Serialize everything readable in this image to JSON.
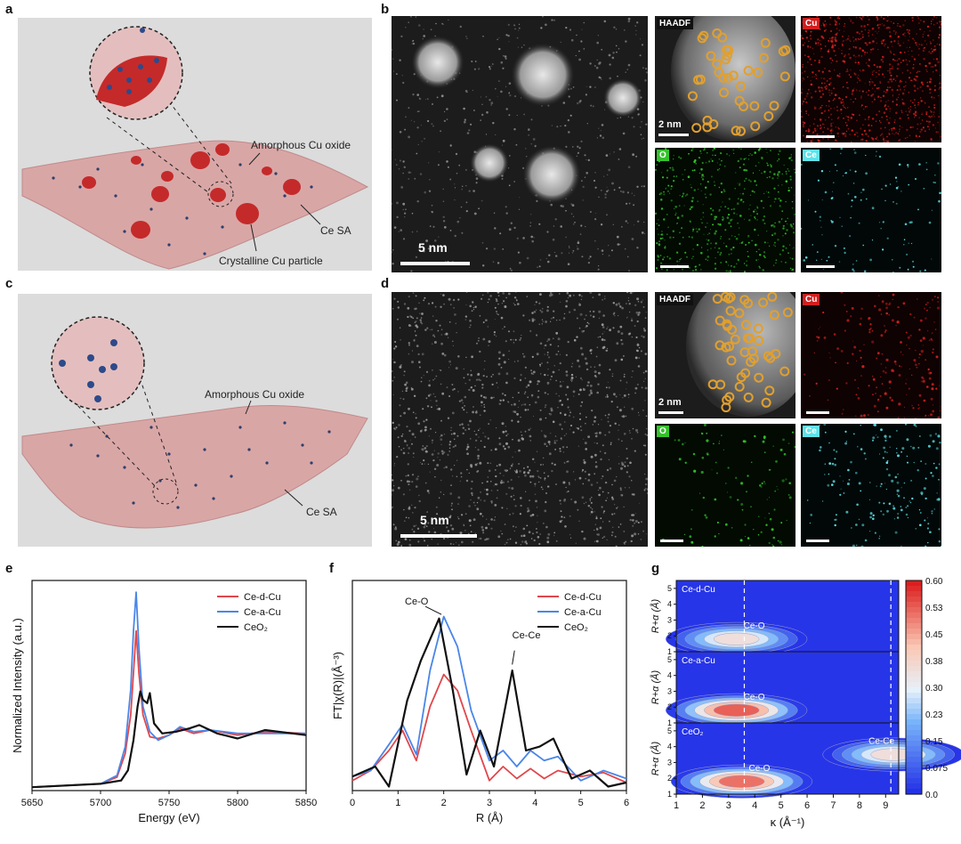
{
  "panels": {
    "a": {
      "label": "a",
      "annotations": [
        "Amorphous Cu oxide",
        "Ce SA",
        "Crystalline Cu particle"
      ]
    },
    "b": {
      "label": "b",
      "scale_main": "5 nm",
      "scale_haadf": "2 nm",
      "tags": [
        "HAADF",
        "Cu",
        "O",
        "Ce"
      ]
    },
    "c": {
      "label": "c",
      "annotations": [
        "Amorphous Cu oxide",
        "Ce SA"
      ]
    },
    "d": {
      "label": "d",
      "scale_main": "5 nm",
      "scale_haadf": "2 nm",
      "tags": [
        "HAADF",
        "Cu",
        "O",
        "Ce"
      ]
    },
    "e": {
      "label": "e"
    },
    "f": {
      "label": "f"
    },
    "g": {
      "label": "g"
    }
  },
  "colors": {
    "ce_d_cu": "#e0474c",
    "ce_a_cu": "#4a86e8",
    "ceo2": "#111111",
    "cu_map": "#d21f1f",
    "o_map": "#35c22c",
    "ce_map": "#5fe3e8",
    "haadf_ring": "#e0a030"
  },
  "chart_data": [
    {
      "type": "line",
      "title": "",
      "xlabel": "Energy (eV)",
      "ylabel": "Normalized Intensity (a.u.)",
      "xlim": [
        5650,
        5850
      ],
      "xticks": [
        5650,
        5700,
        5750,
        5800,
        5850
      ],
      "legend_position": "top-right",
      "series": [
        {
          "name": "Ce-d-Cu",
          "x": [
            5650,
            5700,
            5712,
            5718,
            5722,
            5724,
            5726,
            5728,
            5731,
            5736,
            5742,
            5750,
            5758,
            5768,
            5780,
            5800,
            5820,
            5850
          ],
          "y": [
            0.02,
            0.04,
            0.08,
            0.22,
            0.45,
            0.7,
            0.95,
            0.7,
            0.45,
            0.32,
            0.31,
            0.33,
            0.37,
            0.34,
            0.36,
            0.33,
            0.35,
            0.34
          ]
        },
        {
          "name": "Ce-a-Cu",
          "x": [
            5650,
            5700,
            5712,
            5718,
            5722,
            5724,
            5726,
            5728,
            5731,
            5736,
            5742,
            5750,
            5758,
            5768,
            5780,
            5800,
            5820,
            5850
          ],
          "y": [
            0.02,
            0.04,
            0.09,
            0.26,
            0.6,
            0.95,
            1.18,
            0.85,
            0.5,
            0.35,
            0.3,
            0.33,
            0.38,
            0.35,
            0.36,
            0.34,
            0.34,
            0.34
          ]
        },
        {
          "name": "CeO2",
          "display": "CeO₂",
          "x": [
            5650,
            5700,
            5715,
            5720,
            5724,
            5727,
            5729,
            5731,
            5734,
            5736,
            5739,
            5745,
            5755,
            5765,
            5772,
            5785,
            5800,
            5820,
            5850
          ],
          "y": [
            0.02,
            0.04,
            0.06,
            0.12,
            0.3,
            0.5,
            0.59,
            0.54,
            0.52,
            0.58,
            0.4,
            0.34,
            0.35,
            0.37,
            0.39,
            0.34,
            0.31,
            0.36,
            0.33
          ]
        }
      ]
    },
    {
      "type": "line",
      "title": "",
      "xlabel": "R (Å)",
      "ylabel": "FT|χ(R)|(Å⁻³)",
      "xlim": [
        0,
        6
      ],
      "xticks": [
        0,
        1,
        2,
        3,
        4,
        5,
        6
      ],
      "annotations": [
        "Ce-O",
        "Ce-Ce"
      ],
      "legend_position": "top-right",
      "series": [
        {
          "name": "Ce-d-Cu",
          "x": [
            0,
            0.4,
            0.8,
            1.1,
            1.4,
            1.7,
            2.0,
            2.3,
            2.6,
            3.0,
            3.3,
            3.6,
            3.9,
            4.2,
            4.5,
            5.0,
            5.5,
            6.0
          ],
          "y": [
            0.05,
            0.1,
            0.2,
            0.3,
            0.15,
            0.42,
            0.58,
            0.5,
            0.3,
            0.05,
            0.12,
            0.06,
            0.11,
            0.06,
            0.1,
            0.07,
            0.09,
            0.04
          ]
        },
        {
          "name": "Ce-a-Cu",
          "x": [
            0,
            0.4,
            0.8,
            1.1,
            1.4,
            1.7,
            2.0,
            2.3,
            2.6,
            3.0,
            3.3,
            3.6,
            3.9,
            4.2,
            4.5,
            5.0,
            5.5,
            6.0
          ],
          "y": [
            0.07,
            0.1,
            0.23,
            0.33,
            0.18,
            0.6,
            0.87,
            0.72,
            0.4,
            0.15,
            0.2,
            0.12,
            0.2,
            0.15,
            0.17,
            0.05,
            0.1,
            0.06
          ]
        },
        {
          "name": "CeO2",
          "display": "CeO₂",
          "x": [
            0,
            0.5,
            0.8,
            1.2,
            1.5,
            1.9,
            2.2,
            2.5,
            2.8,
            3.1,
            3.5,
            3.8,
            4.1,
            4.4,
            4.8,
            5.2,
            5.6,
            6.0
          ],
          "y": [
            0.07,
            0.12,
            0.02,
            0.45,
            0.65,
            0.86,
            0.5,
            0.08,
            0.3,
            0.12,
            0.6,
            0.2,
            0.22,
            0.26,
            0.06,
            0.1,
            0.02,
            0.04
          ]
        }
      ]
    },
    {
      "type": "heatmap",
      "title": "",
      "xlabel": "κ (Å⁻¹)",
      "ylabel": "R+α (Å)",
      "xlim": [
        1,
        9.5
      ],
      "xticks": [
        1,
        2,
        3,
        4,
        5,
        6,
        7,
        8,
        9
      ],
      "ylim": [
        1,
        5.5
      ],
      "yticks": [
        1,
        2,
        3,
        4,
        5
      ],
      "colorbar": {
        "ticks": [
          "0.60",
          "0.53",
          "0.45",
          "0.38",
          "0.30",
          "0.23",
          "0.15",
          "0.075",
          "0.0"
        ],
        "min": 0,
        "max": 0.6
      },
      "dashed_lines_x": [
        3.6,
        9.2
      ],
      "panels": [
        {
          "name": "Ce-d-Cu",
          "label": "Ce-O",
          "hotspots": [
            {
              "k": 3.3,
              "r": 1.8,
              "v": 0.4
            }
          ]
        },
        {
          "name": "Ce-a-Cu",
          "label": "Ce-O",
          "hotspots": [
            {
              "k": 3.3,
              "r": 1.8,
              "v": 0.6
            }
          ]
        },
        {
          "name": "CeO2",
          "display": "CeO₂",
          "labels": [
            "Ce-O",
            "Ce-Ce"
          ],
          "hotspots": [
            {
              "k": 3.5,
              "r": 1.8,
              "v": 0.58
            },
            {
              "k": 9.3,
              "r": 3.5,
              "v": 0.4
            }
          ]
        }
      ]
    }
  ]
}
